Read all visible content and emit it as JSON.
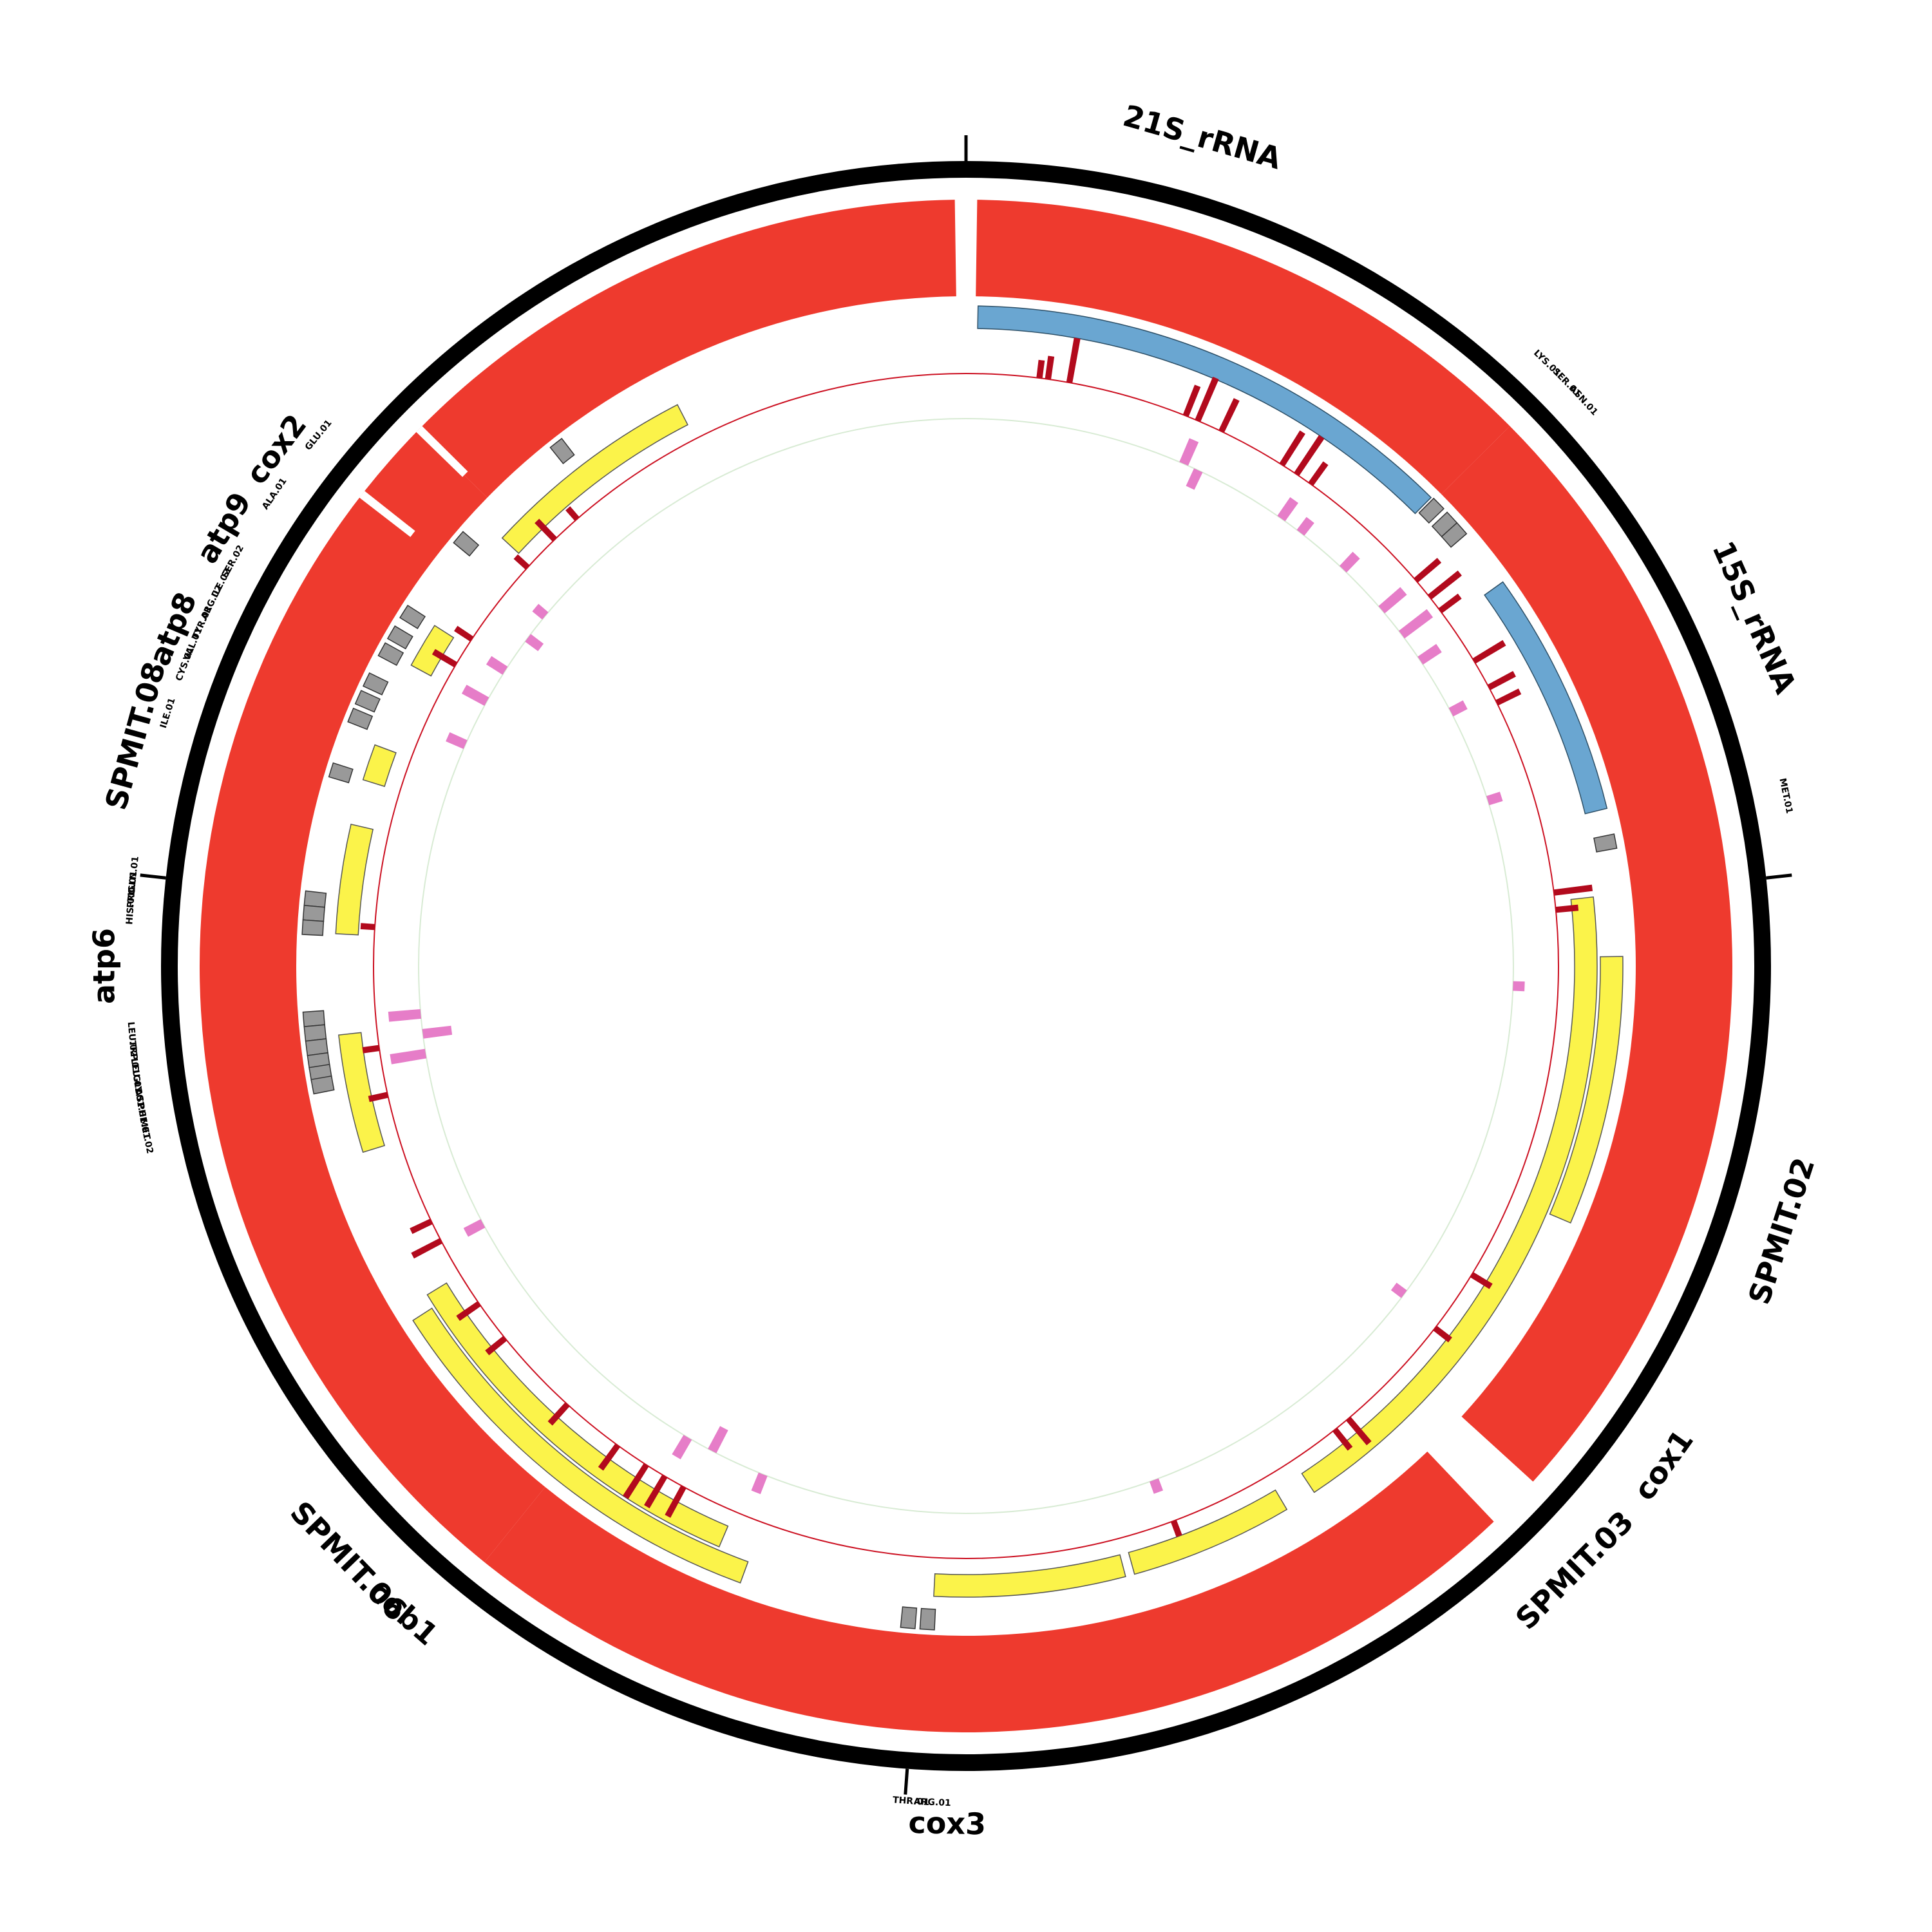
{
  "diagram": {
    "genome_length": 86000,
    "colors": {
      "outer_ring": "#000000",
      "main_track": "#ee3a2e",
      "rrna_block": "#6aa6d1",
      "cds_block": "#fbf34a",
      "trna_block": "#999999",
      "coverage_bars": "#b20a1d",
      "coverage_line": "#cc1122",
      "gc_skew_fill": "#e266be",
      "gc_skew_light": "#d8ebd4"
    },
    "major_labels": [
      {
        "text": "cox2",
        "pos": 73300
      },
      {
        "text": "21S_rRNA",
        "pos": 3800
      },
      {
        "text": "15S_rRNA",
        "pos": 15800
      },
      {
        "text": "SPMIT.02",
        "pos": 25800
      },
      {
        "text": "cox1",
        "pos": 30000
      },
      {
        "text": "SPMIT.03",
        "pos": 32200
      },
      {
        "text": "cox3",
        "pos": 43300
      },
      {
        "text": "cob1",
        "pos": 52800
      },
      {
        "text": "SPMIT.06",
        "pos": 54000
      },
      {
        "text": "atp6",
        "pos": 64500
      },
      {
        "text": "SPMIT.08",
        "pos": 68200
      },
      {
        "text": "atp8",
        "pos": 70000
      },
      {
        "text": "atp9",
        "pos": 71800
      }
    ],
    "minor_labels": [
      {
        "text": "GLU.01",
        "pos": 73900
      },
      {
        "text": "ALA.01",
        "pos": 72700
      },
      {
        "text": "SER.02",
        "pos": 71400
      },
      {
        "text": "ILE.02",
        "pos": 71000
      },
      {
        "text": "ARG.02",
        "pos": 70650
      },
      {
        "text": "TYR.01",
        "pos": 70280
      },
      {
        "text": "VAL.01",
        "pos": 69900
      },
      {
        "text": "CYS.01",
        "pos": 69550
      },
      {
        "text": "ILE.01",
        "pos": 68700
      },
      {
        "text": "GLN.01",
        "pos": 66000
      },
      {
        "text": "PRO.01",
        "pos": 65750
      },
      {
        "text": "HIS.01",
        "pos": 65450
      },
      {
        "text": "LEU.02",
        "pos": 63300
      },
      {
        "text": "TRP.01",
        "pos": 63000
      },
      {
        "text": "LEU.01",
        "pos": 62700
      },
      {
        "text": "GLY.01",
        "pos": 62450
      },
      {
        "text": "ASP.01",
        "pos": 62200
      },
      {
        "text": "PHE.01",
        "pos": 61950
      },
      {
        "text": "MET.02",
        "pos": 61700
      },
      {
        "text": "LYS.01",
        "pos": 10500
      },
      {
        "text": "SER.01",
        "pos": 10950
      },
      {
        "text": "ASN.01",
        "pos": 11350
      },
      {
        "text": "MET.01",
        "pos": 18700
      },
      {
        "text": "THR.01",
        "pos": 43900
      },
      {
        "text": "ARG.01",
        "pos": 43550
      }
    ],
    "outer_ticks": [
      0,
      20000,
      44000,
      66000
    ],
    "main_track_arcs": [
      {
        "start": 200,
        "end": 10800
      },
      {
        "start": 10800,
        "end": 31600
      },
      {
        "start": 32600,
        "end": 52300
      },
      {
        "start": 52300,
        "end": 75100
      },
      {
        "start": 75100,
        "end": 85800
      }
    ],
    "rrna_blocks": [
      {
        "start": 250,
        "end": 10700
      },
      {
        "start": 13000,
        "end": 18200
      }
    ],
    "cds_blocks": [
      {
        "start": 74700,
        "end": 79500,
        "ring": "inner"
      },
      {
        "start": 71300,
        "end": 72300,
        "ring": "inner"
      },
      {
        "start": 68600,
        "end": 69400,
        "ring": "inner"
      },
      {
        "start": 65200,
        "end": 67600,
        "ring": "inner"
      },
      {
        "start": 60400,
        "end": 63000,
        "ring": "inner"
      },
      {
        "start": 48500,
        "end": 57000,
        "ring": "inner"
      },
      {
        "start": 47800,
        "end": 56700,
        "ring": "outer"
      },
      {
        "start": 39500,
        "end": 43700,
        "ring": "inner"
      },
      {
        "start": 35700,
        "end": 39300,
        "ring": "inner"
      },
      {
        "start": 20000,
        "end": 35000,
        "ring": "inner"
      },
      {
        "start": 21300,
        "end": 27000,
        "ring": "outer"
      }
    ],
    "trna_blocks": [
      {
        "pos": 76900,
        "ring": "outer"
      },
      {
        "pos": 74100,
        "ring": "outer"
      },
      {
        "pos": 72200,
        "ring": "outer"
      },
      {
        "pos": 71700,
        "ring": "outer"
      },
      {
        "pos": 71300,
        "ring": "outer"
      },
      {
        "pos": 70600,
        "ring": "outer"
      },
      {
        "pos": 70200,
        "ring": "outer"
      },
      {
        "pos": 69800,
        "ring": "outer"
      },
      {
        "pos": 68600,
        "ring": "outer"
      },
      {
        "pos": 65900,
        "ring": "outer"
      },
      {
        "pos": 65600,
        "ring": "outer"
      },
      {
        "pos": 65300,
        "ring": "outer"
      },
      {
        "pos": 63400,
        "ring": "outer"
      },
      {
        "pos": 63100,
        "ring": "outer"
      },
      {
        "pos": 62800,
        "ring": "outer"
      },
      {
        "pos": 62500,
        "ring": "outer"
      },
      {
        "pos": 62250,
        "ring": "outer"
      },
      {
        "pos": 62000,
        "ring": "outer"
      },
      {
        "pos": 10900,
        "ring": "inner"
      },
      {
        "pos": 11300,
        "ring": "inner"
      },
      {
        "pos": 11600,
        "ring": "inner"
      },
      {
        "pos": 18900,
        "ring": "inner"
      },
      {
        "pos": 44200,
        "ring": "outer"
      },
      {
        "pos": 43800,
        "ring": "outer"
      }
    ],
    "coverage_peaks": [
      {
        "pos": 1700,
        "h": 28
      },
      {
        "pos": 1900,
        "h": 36
      },
      {
        "pos": 2400,
        "h": 70
      },
      {
        "pos": 5200,
        "h": 50
      },
      {
        "pos": 5500,
        "h": 72
      },
      {
        "pos": 6100,
        "h": 55
      },
      {
        "pos": 7700,
        "h": 60
      },
      {
        "pos": 8100,
        "h": 70
      },
      {
        "pos": 8500,
        "h": 40
      },
      {
        "pos": 11800,
        "h": 48
      },
      {
        "pos": 12300,
        "h": 60
      },
      {
        "pos": 12700,
        "h": 38
      },
      {
        "pos": 14100,
        "h": 55
      },
      {
        "pos": 14800,
        "h": 45
      },
      {
        "pos": 15200,
        "h": 40
      },
      {
        "pos": 19800,
        "h": 60
      },
      {
        "pos": 20200,
        "h": 35
      },
      {
        "pos": 29000,
        "h": 35
      },
      {
        "pos": 30500,
        "h": 30
      },
      {
        "pos": 33400,
        "h": 50
      },
      {
        "pos": 33800,
        "h": 38
      },
      {
        "pos": 38100,
        "h": 25
      },
      {
        "pos": 49800,
        "h": 52
      },
      {
        "pos": 50300,
        "h": 55
      },
      {
        "pos": 50800,
        "h": 60
      },
      {
        "pos": 51600,
        "h": 45
      },
      {
        "pos": 53100,
        "h": 40
      },
      {
        "pos": 55200,
        "h": 36
      },
      {
        "pos": 56200,
        "h": 40
      },
      {
        "pos": 57900,
        "h": 50
      },
      {
        "pos": 58400,
        "h": 35
      },
      {
        "pos": 61500,
        "h": 30
      },
      {
        "pos": 62600,
        "h": 26
      },
      {
        "pos": 65400,
        "h": 22
      },
      {
        "pos": 71800,
        "h": 40
      },
      {
        "pos": 72500,
        "h": 30
      },
      {
        "pos": 74600,
        "h": 25
      },
      {
        "pos": 75500,
        "h": 40
      },
      {
        "pos": 76200,
        "h": 22
      }
    ],
    "gc_skew_peaks": [
      {
        "pos": 5600,
        "h": 40
      },
      {
        "pos": 6000,
        "h": -30
      },
      {
        "pos": 8400,
        "h": 35
      },
      {
        "pos": 9000,
        "h": 25
      },
      {
        "pos": 10400,
        "h": 30
      },
      {
        "pos": 11800,
        "h": 45
      },
      {
        "pos": 12600,
        "h": 55
      },
      {
        "pos": 13400,
        "h": 35
      },
      {
        "pos": 14900,
        "h": 25
      },
      {
        "pos": 17300,
        "h": 22
      },
      {
        "pos": 22000,
        "h": 18
      },
      {
        "pos": 30300,
        "h": -20
      },
      {
        "pos": 38200,
        "h": 20
      },
      {
        "pos": 48200,
        "h": 30
      },
      {
        "pos": 49600,
        "h": -40
      },
      {
        "pos": 50300,
        "h": 35
      },
      {
        "pos": 57800,
        "h": 30
      },
      {
        "pos": 62300,
        "h": 55
      },
      {
        "pos": 62800,
        "h": -45
      },
      {
        "pos": 63300,
        "h": 50
      },
      {
        "pos": 70200,
        "h": 30
      },
      {
        "pos": 71400,
        "h": 40
      },
      {
        "pos": 72300,
        "h": 30
      },
      {
        "pos": 73300,
        "h": -25
      },
      {
        "pos": 74000,
        "h": 20
      }
    ]
  }
}
